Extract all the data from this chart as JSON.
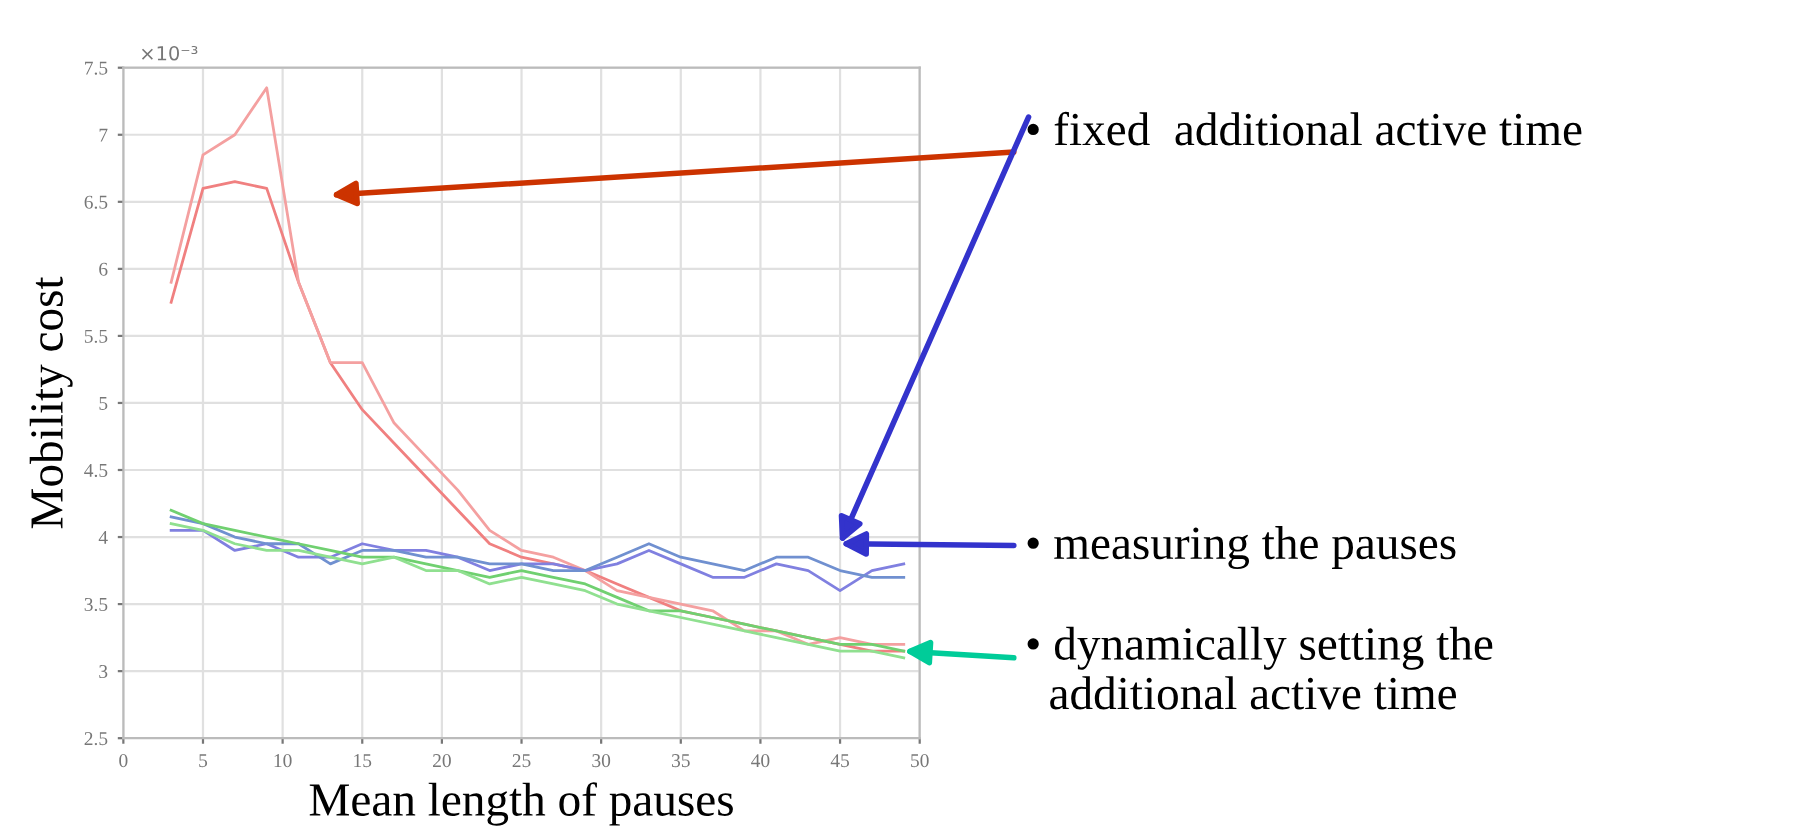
{
  "chart_data": {
    "type": "line",
    "xlabel": "Mean length of pauses",
    "ylabel": "Mobility cost",
    "x": [
      3,
      5,
      7,
      9,
      11,
      13,
      15,
      17,
      19,
      21,
      23,
      25,
      27,
      29,
      31,
      33,
      35,
      37,
      39,
      41,
      43,
      45,
      47,
      49
    ],
    "series": [
      {
        "color": "#f08080",
        "values": [
          5.75,
          6.6,
          6.65,
          6.6,
          5.9,
          5.3,
          4.95,
          4.7,
          4.45,
          4.2,
          3.95,
          3.85,
          3.8,
          3.75,
          3.65,
          3.55,
          3.45,
          3.4,
          3.35,
          3.3,
          3.25,
          3.2,
          3.15,
          3.15
        ]
      },
      {
        "color": "#f4a0a0",
        "values": [
          5.9,
          6.85,
          7.0,
          7.35,
          5.9,
          5.3,
          5.3,
          4.85,
          4.6,
          4.35,
          4.05,
          3.9,
          3.85,
          3.75,
          3.6,
          3.55,
          3.5,
          3.45,
          3.3,
          3.3,
          3.2,
          3.25,
          3.2,
          3.2
        ]
      },
      {
        "color": "#8080e0",
        "values": [
          4.05,
          4.05,
          3.9,
          3.95,
          3.85,
          3.85,
          3.95,
          3.9,
          3.9,
          3.85,
          3.75,
          3.8,
          3.8,
          3.75,
          3.8,
          3.9,
          3.8,
          3.7,
          3.7,
          3.8,
          3.75,
          3.6,
          3.75,
          3.8
        ]
      },
      {
        "color": "#7090d0",
        "values": [
          4.15,
          4.1,
          4.0,
          3.95,
          3.95,
          3.8,
          3.9,
          3.9,
          3.85,
          3.85,
          3.8,
          3.8,
          3.75,
          3.75,
          3.85,
          3.95,
          3.85,
          3.8,
          3.75,
          3.85,
          3.85,
          3.75,
          3.7,
          3.7
        ]
      },
      {
        "color": "#70d070",
        "values": [
          4.2,
          4.1,
          4.05,
          4.0,
          3.95,
          3.9,
          3.85,
          3.85,
          3.8,
          3.75,
          3.7,
          3.75,
          3.7,
          3.65,
          3.55,
          3.45,
          3.45,
          3.4,
          3.35,
          3.3,
          3.25,
          3.2,
          3.2,
          3.15
        ]
      },
      {
        "color": "#90e090",
        "values": [
          4.1,
          4.05,
          3.95,
          3.9,
          3.9,
          3.85,
          3.8,
          3.85,
          3.75,
          3.75,
          3.65,
          3.7,
          3.65,
          3.6,
          3.5,
          3.45,
          3.4,
          3.35,
          3.3,
          3.25,
          3.2,
          3.15,
          3.15,
          3.1
        ]
      }
    ],
    "xlim": [
      0,
      50
    ],
    "xticks": [
      0,
      5,
      10,
      15,
      20,
      25,
      30,
      35,
      40,
      45,
      50
    ],
    "ylim": [
      2.5,
      7.5
    ],
    "yticks": [
      2.5,
      3,
      3.5,
      4,
      4.5,
      5,
      5.5,
      6,
      6.5,
      7,
      7.5
    ],
    "grid": true,
    "annotations": [
      "• fixed  additional active time",
      "• measuring the pauses",
      {
        "text": "• dynamically setting the\n  additional active time",
        "x": 49,
        "y": 3.15
      },
      "×10⁻³"
    ]
  }
}
